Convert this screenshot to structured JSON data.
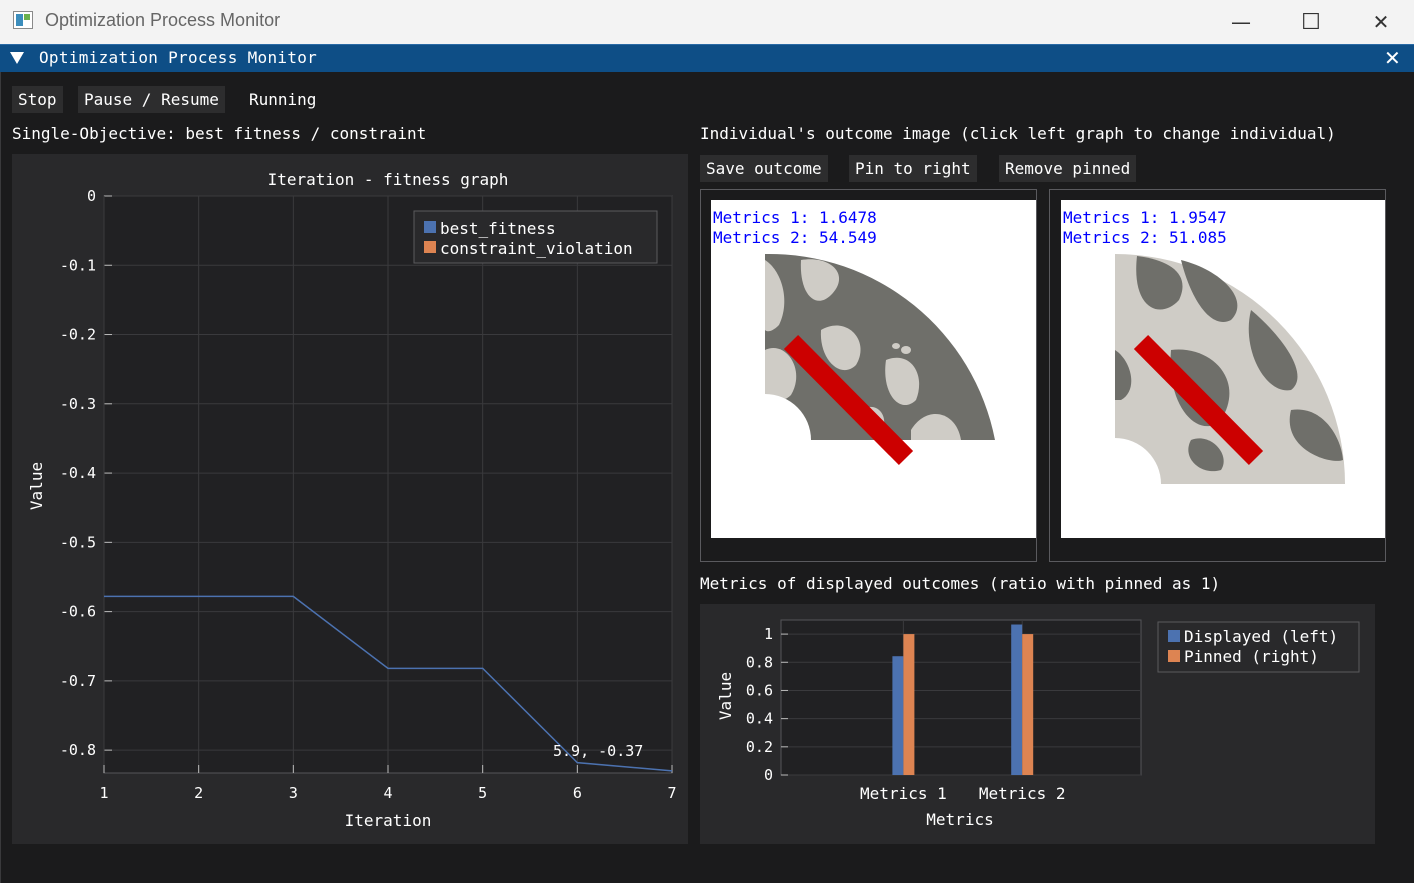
{
  "os_window": {
    "title": "Optimization Process Monitor",
    "minimize": "—",
    "maximize": "☐",
    "close": "✕"
  },
  "imgui_window": {
    "title": "Optimization Process Monitor",
    "close": "✕"
  },
  "controls": {
    "stop": "Stop",
    "pause_resume": "Pause / Resume",
    "status": "Running"
  },
  "left": {
    "section_title": "Single-Objective: best fitness / constraint",
    "chart_title": "Iteration - fitness graph",
    "tooltip": "5.9, -0.37"
  },
  "right": {
    "section_title": "Individual's outcome image (click left graph to change individual)",
    "buttons": {
      "save": "Save outcome",
      "pin": "Pin to right",
      "remove": "Remove pinned"
    },
    "displayed": {
      "metric1": "Metrics 1: 1.6478",
      "metric2": "Metrics 2: 54.549"
    },
    "pinned": {
      "metric1": "Metrics 1: 1.9547",
      "metric2": "Metrics 2: 51.085"
    },
    "metrics_title": "Metrics of displayed outcomes (ratio with pinned as 1)"
  },
  "colors": {
    "blue": "#4c72b0",
    "orange": "#dd8452",
    "metric_text": "#0000ff",
    "rod": "#cc0000",
    "dark_gray": "#6f6f6a",
    "light_gray": "#cfccc6"
  },
  "chart_data": [
    {
      "type": "line",
      "title": "Iteration - fitness graph",
      "xlabel": "Iteration",
      "ylabel": "Value",
      "xlim": [
        1,
        7
      ],
      "ylim": [
        -0.83,
        0
      ],
      "xticks": [
        "1",
        "2",
        "3",
        "4",
        "5",
        "6",
        "7"
      ],
      "yticks": [
        "0",
        "-0.1",
        "-0.2",
        "-0.3",
        "-0.4",
        "-0.5",
        "-0.6",
        "-0.7",
        "-0.8"
      ],
      "grid": true,
      "legend_position": "top-right",
      "series": [
        {
          "name": "best_fitness",
          "x": [
            1,
            2,
            3,
            4,
            5,
            6,
            7
          ],
          "y": [
            -0.578,
            -0.578,
            -0.578,
            -0.682,
            -0.682,
            -0.818,
            -0.83
          ]
        },
        {
          "name": "constraint_violation",
          "x": [],
          "y": []
        }
      ]
    },
    {
      "type": "bar",
      "xlabel": "Metrics",
      "ylabel": "Value",
      "categories": [
        "Metrics 1",
        "Metrics 2"
      ],
      "ylim": [
        0,
        1.1
      ],
      "yticks": [
        "0",
        "0.2",
        "0.4",
        "0.6",
        "0.8",
        "1"
      ],
      "legend_position": "right",
      "series": [
        {
          "name": "Displayed (left)",
          "values": [
            0.843,
            1.068
          ]
        },
        {
          "name": "Pinned (right)",
          "values": [
            1.0,
            1.0
          ]
        }
      ]
    }
  ]
}
